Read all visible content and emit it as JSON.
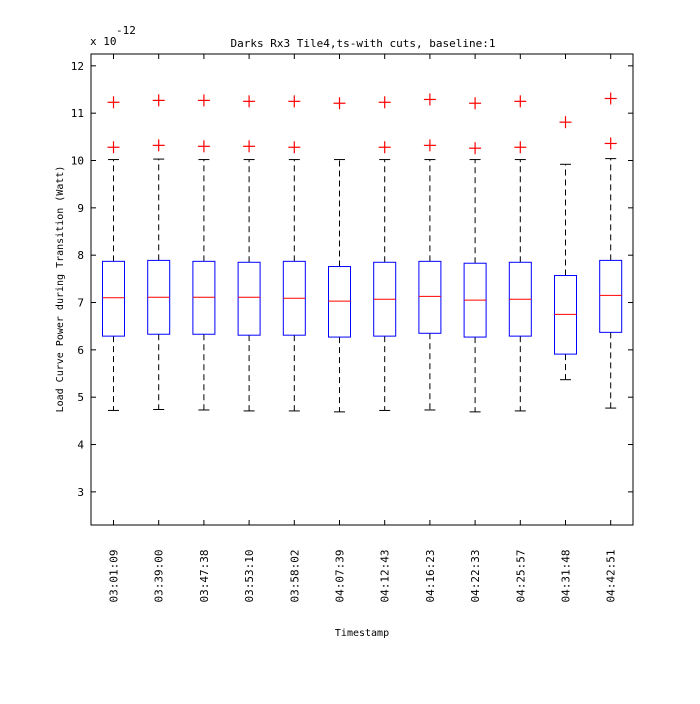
{
  "chart_data": {
    "type": "box",
    "title": "Darks Rx3 Tile4,ts-with cuts, baseline:1",
    "xlabel": "Timestamp",
    "ylabel": "Load Curve Power during Transition (Watt)",
    "y_exponent_prefix": "x 10",
    "y_exponent": "-12",
    "ylim": [
      2.3,
      12.25
    ],
    "yticks": [
      3,
      4,
      5,
      6,
      7,
      8,
      9,
      10,
      11,
      12
    ],
    "grid": false,
    "colors": {
      "box": "#0000ff",
      "median": "#ff0000",
      "outlier": "#ff0000",
      "whisker": "#000000"
    },
    "categories": [
      "03:01:09",
      "03:39:00",
      "03:47:38",
      "03:53:10",
      "03:58:02",
      "04:07:39",
      "04:12:43",
      "04:16:23",
      "04:22:33",
      "04:25:57",
      "04:31:48",
      "04:42:51"
    ],
    "boxes": [
      {
        "whisker_low": 4.72,
        "q1": 6.29,
        "median": 7.1,
        "q3": 7.87,
        "whisker_high": 10.02,
        "outliers": [
          10.28,
          11.23
        ]
      },
      {
        "whisker_low": 4.74,
        "q1": 6.33,
        "median": 7.11,
        "q3": 7.89,
        "whisker_high": 10.03,
        "outliers": [
          10.32,
          11.27
        ]
      },
      {
        "whisker_low": 4.73,
        "q1": 6.33,
        "median": 7.11,
        "q3": 7.87,
        "whisker_high": 10.02,
        "outliers": [
          10.3,
          11.27
        ]
      },
      {
        "whisker_low": 4.71,
        "q1": 6.31,
        "median": 7.11,
        "q3": 7.85,
        "whisker_high": 10.02,
        "outliers": [
          10.3,
          11.25
        ]
      },
      {
        "whisker_low": 4.71,
        "q1": 6.31,
        "median": 7.09,
        "q3": 7.87,
        "whisker_high": 10.02,
        "outliers": [
          10.28,
          11.25
        ]
      },
      {
        "whisker_low": 4.69,
        "q1": 6.27,
        "median": 7.03,
        "q3": 7.76,
        "whisker_high": 10.02,
        "outliers": [
          11.21
        ]
      },
      {
        "whisker_low": 4.72,
        "q1": 6.29,
        "median": 7.07,
        "q3": 7.85,
        "whisker_high": 10.02,
        "outliers": [
          10.28,
          11.23
        ]
      },
      {
        "whisker_low": 4.73,
        "q1": 6.35,
        "median": 7.13,
        "q3": 7.87,
        "whisker_high": 10.02,
        "outliers": [
          10.32,
          11.29
        ]
      },
      {
        "whisker_low": 4.69,
        "q1": 6.27,
        "median": 7.05,
        "q3": 7.83,
        "whisker_high": 10.02,
        "outliers": [
          10.26,
          11.21
        ]
      },
      {
        "whisker_low": 4.71,
        "q1": 6.29,
        "median": 7.07,
        "q3": 7.85,
        "whisker_high": 10.02,
        "outliers": [
          10.28,
          11.25
        ]
      },
      {
        "whisker_low": 5.37,
        "q1": 5.91,
        "median": 6.75,
        "q3": 7.57,
        "whisker_high": 9.92,
        "outliers": [
          10.81
        ]
      },
      {
        "whisker_low": 4.77,
        "q1": 6.37,
        "median": 7.15,
        "q3": 7.89,
        "whisker_high": 10.04,
        "outliers": [
          10.36,
          11.31
        ]
      }
    ]
  }
}
